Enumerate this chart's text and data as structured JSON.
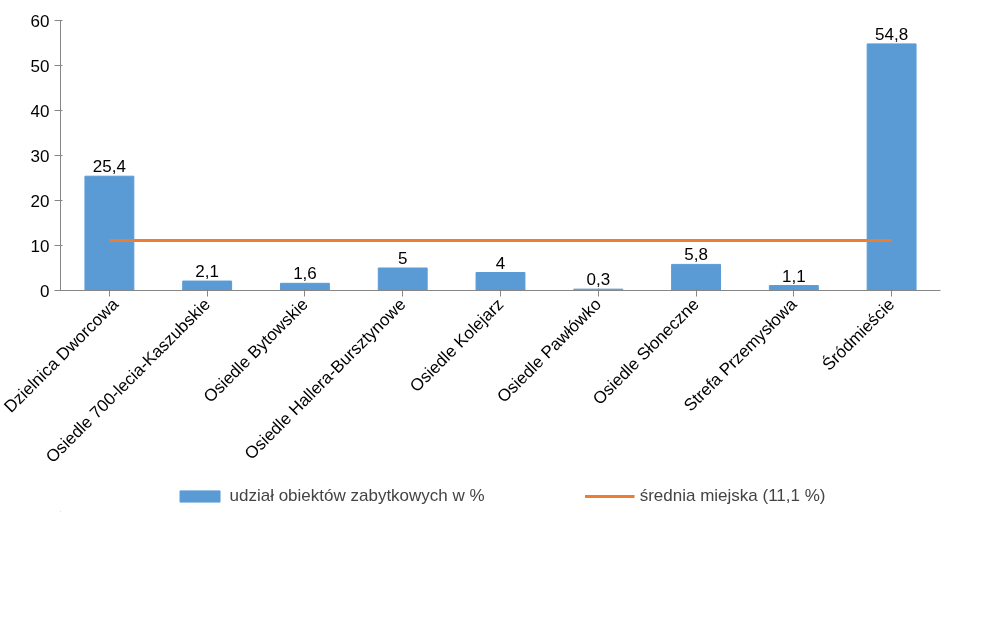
{
  "chart_data": {
    "type": "bar",
    "categories": [
      "Dzielnica Dworcowa",
      "Osiedle 700-lecia-Kaszubskie",
      "Osiedle Bytowskie",
      "Osiedle Hallera-Bursztynowe",
      "Osiedle Kolejarz",
      "Osiedle Pawłówko",
      "Osiedle Słoneczne",
      "Strefa Przemysłowa",
      "Śródmieście"
    ],
    "series": [
      {
        "name": "udział obiektów zabytkowych w %",
        "color": "#5b9bd5",
        "values": [
          25.4,
          2.1,
          1.6,
          5,
          4,
          0.3,
          5.8,
          1.1,
          54.8
        ],
        "value_labels": [
          "25,4",
          "2,1",
          "1,6",
          "5",
          "4",
          "0,3",
          "5,8",
          "1,1",
          "54,8"
        ]
      },
      {
        "name": "średnia miejska (11,1 %)",
        "type": "line",
        "color": "#ed7d31",
        "values": [
          11.1,
          11.1,
          11.1,
          11.1,
          11.1,
          11.1,
          11.1,
          11.1,
          11.1
        ]
      }
    ],
    "ylim": [
      0,
      60
    ],
    "yticks": [
      0,
      10,
      20,
      30,
      40,
      50,
      60
    ],
    "grid": false,
    "legend": "bottom",
    "marker": "none",
    "line_style": "solid"
  }
}
